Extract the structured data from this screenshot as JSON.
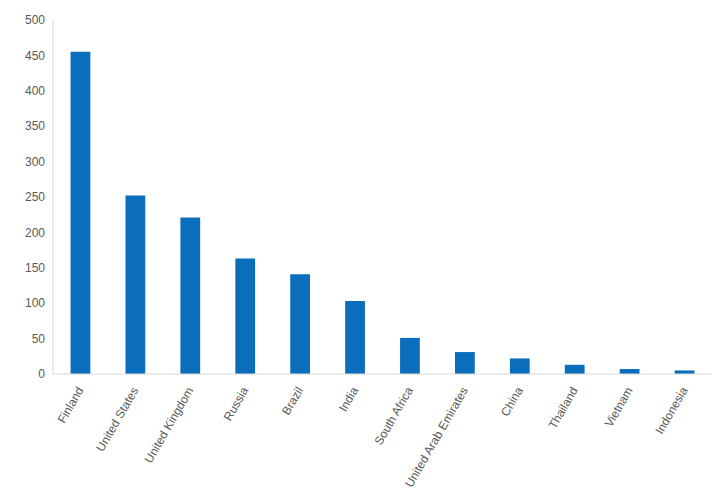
{
  "chart_data": {
    "type": "bar",
    "categories": [
      "Finland",
      "United States",
      "United Kingdom",
      "Russia",
      "Brazil",
      "India",
      "South Africa",
      "United Arab Emirates",
      "China",
      "Thailand",
      "Vietnam",
      "Indonesia"
    ],
    "values": [
      455,
      252,
      221,
      163,
      141,
      103,
      51,
      31,
      22,
      13,
      7,
      5
    ],
    "color": "#0a6ebd",
    "ylim": [
      0,
      500
    ],
    "yticks": [
      0,
      50,
      100,
      150,
      200,
      250,
      300,
      350,
      400,
      450,
      500
    ],
    "grid": false
  }
}
